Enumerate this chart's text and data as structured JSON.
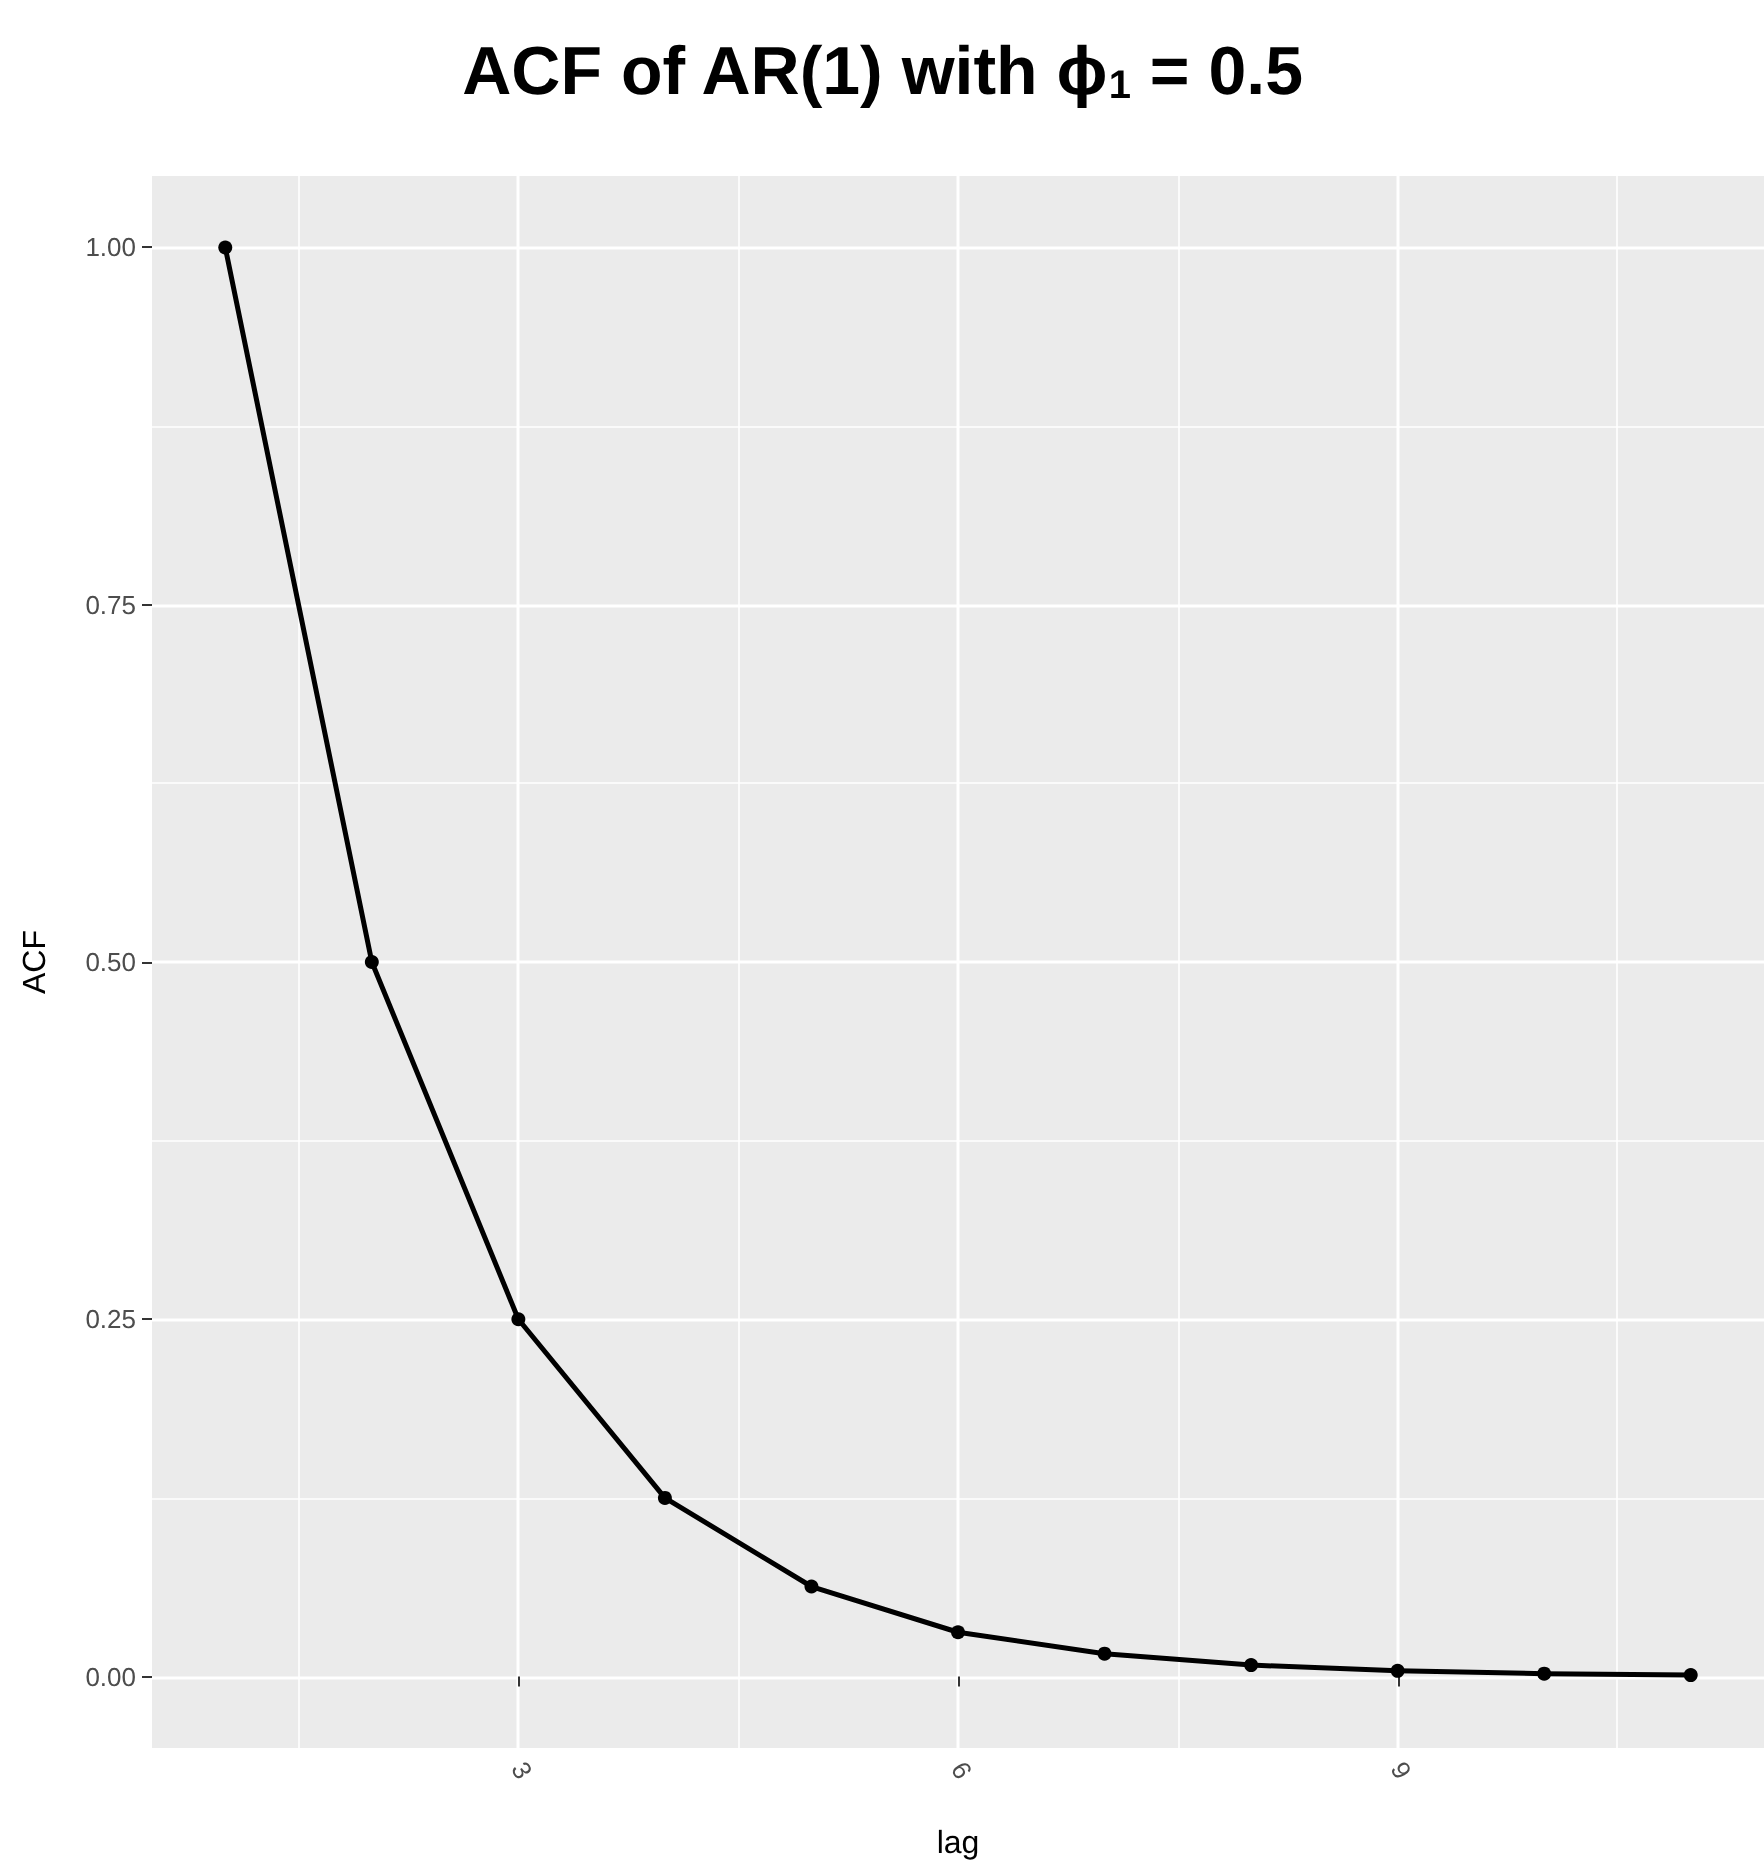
{
  "chart_data": {
    "type": "line",
    "title": "ACF of AR(1) with ϕ$_{1}$ = 0.5",
    "xlabel": "lag",
    "ylabel": "ACF",
    "x": [
      1,
      2,
      3,
      4,
      5,
      6,
      7,
      8,
      9,
      10,
      11
    ],
    "series": [
      {
        "color": "#000000",
        "values": [
          1,
          0.5,
          0.25,
          0.125,
          0.063,
          0.031,
          0.016,
          0.008,
          0.004,
          0.002,
          0.001
        ]
      }
    ],
    "xlim": [
      0.5,
      11.5
    ],
    "xticks": [
      3,
      6,
      9
    ],
    "ylim": [
      -0.05,
      1.05
    ],
    "yticks": [
      {
        "value": 0,
        "label": "0.00"
      },
      0.25,
      {
        "value": 0.5,
        "label": "0.50"
      },
      0.75,
      {
        "value": 1,
        "label": "1.00"
      }
    ],
    "grid": true,
    "marker": "circle",
    "line_style": "solid"
  }
}
